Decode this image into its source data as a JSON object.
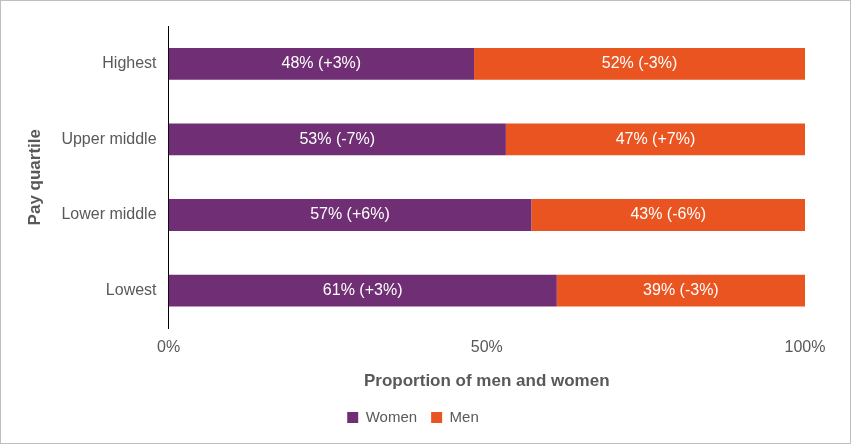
{
  "chart_data": {
    "type": "bar",
    "orientation": "horizontal",
    "stacked": true,
    "categories": [
      "Highest",
      "Upper middle",
      "Lower middle",
      "Lowest"
    ],
    "series": [
      {
        "name": "Women",
        "color": "#702F74",
        "values": [
          48,
          53,
          57,
          61
        ],
        "value_labels": [
          "48% (+3%)",
          "53% (-7%)",
          "57% (+6%)",
          "61% (+3%)"
        ]
      },
      {
        "name": "Men",
        "color": "#EA5420",
        "values": [
          52,
          47,
          43,
          39
        ],
        "value_labels": [
          "52% (-3%)",
          "47% (+7%)",
          "43% (-6%)",
          "39% (-3%)"
        ]
      }
    ],
    "x_label": "Proportion of men and women",
    "y_label": "Pay quartile",
    "xlim": [
      0,
      100
    ],
    "xticks": [
      {
        "value": 0,
        "label": "0%"
      },
      {
        "value": 50,
        "label": "50%"
      },
      {
        "value": 100,
        "label": "100%"
      }
    ],
    "grid": false,
    "legend": "bottom",
    "data_labels": true
  }
}
